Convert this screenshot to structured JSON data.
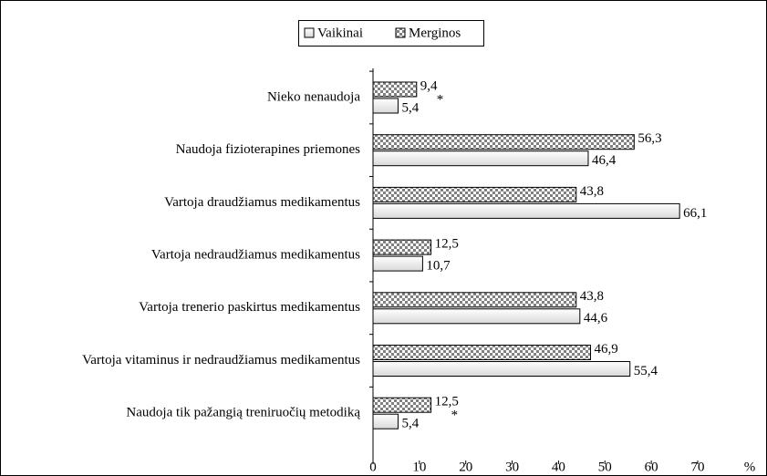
{
  "chart_data": {
    "type": "bar",
    "orientation": "horizontal",
    "categories": [
      "Nieko nenaudoja",
      "Naudoja fizioterapines priemones",
      "Vartoja draudžiamus medikamentus",
      "Vartoja nedraudžiamus medikamentus",
      "Vartoja trenerio paskirtus medikamentus",
      "Vartoja vitaminus ir nedraudžiamus medikamentus",
      "Naudoja tik pažangią treniruočių metodiką"
    ],
    "series": [
      {
        "name": "Vaikinai",
        "color": "#d9d9d9",
        "values": [
          5.4,
          46.4,
          66.1,
          10.7,
          44.6,
          55.4,
          5.4
        ],
        "value_labels": [
          "5,4",
          "46,4",
          "66,1",
          "10,7",
          "44,6",
          "55,4",
          "5,4"
        ]
      },
      {
        "name": "Merginos",
        "color": "#808080",
        "values": [
          9.4,
          56.3,
          43.8,
          12.5,
          43.8,
          46.9,
          12.5
        ],
        "value_labels": [
          "9,4",
          "56,3",
          "43,8",
          "12,5",
          "43,8",
          "46,9",
          "12,5"
        ]
      }
    ],
    "xlim": [
      0,
      70
    ],
    "xticks": [
      0,
      10,
      20,
      30,
      40,
      50,
      60,
      70
    ],
    "x_label": "%",
    "annotations": [
      {
        "text": "*",
        "category": "Nieko nenaudoja"
      },
      {
        "text": "*",
        "category": "Naudoja tik pažangią treniruočių metodiką"
      }
    ],
    "legend": "top"
  }
}
